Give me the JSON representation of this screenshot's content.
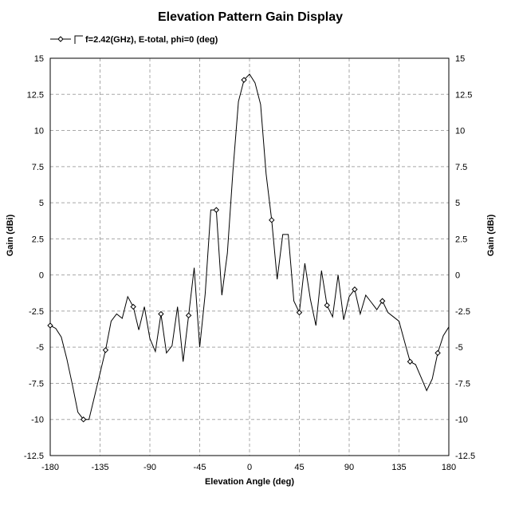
{
  "chart_data": {
    "type": "line",
    "title": "Elevation Pattern Gain Display",
    "xlabel": "Elevation Angle (deg)",
    "ylabel": "Gain (dBi)",
    "y2label": "Gain (dBi)",
    "xlim": [
      -180,
      180
    ],
    "ylim": [
      -12.5,
      15
    ],
    "x_ticks": [
      -180,
      -135,
      -90,
      -45,
      0,
      45,
      90,
      135,
      180
    ],
    "x_tick_labels": [
      "-180",
      "-135",
      "-90",
      "-45",
      "0",
      "45",
      "90",
      "135",
      "180"
    ],
    "y_ticks": [
      -12.5,
      -10,
      -7.5,
      -5,
      -2.5,
      0,
      2.5,
      5,
      7.5,
      10,
      12.5,
      15
    ],
    "y_tick_labels": [
      "-12.5",
      "-10",
      "-7.5",
      "-5",
      "-2.5",
      "0",
      "2.5",
      "5",
      "7.5",
      "10",
      "12.5",
      "15"
    ],
    "grid": true,
    "legend_position": "top-left",
    "series": [
      {
        "name": "f=2.42(GHz), E-total, phi=0 (deg)",
        "color": "#000000",
        "marker": "diamond",
        "x": [
          -180,
          -175,
          -170,
          -165,
          -160,
          -155,
          -150,
          -145,
          -140,
          -135,
          -130,
          -125,
          -120,
          -115,
          -110,
          -105,
          -100,
          -95,
          -90,
          -85,
          -80,
          -75,
          -70,
          -65,
          -60,
          -55,
          -50,
          -45,
          -40,
          -35,
          -30,
          -25,
          -20,
          -15,
          -10,
          -5,
          0,
          5,
          10,
          15,
          20,
          25,
          30,
          35,
          40,
          45,
          50,
          55,
          60,
          65,
          70,
          75,
          80,
          85,
          90,
          95,
          100,
          105,
          110,
          115,
          120,
          125,
          130,
          135,
          140,
          145,
          150,
          155,
          160,
          165,
          170,
          175,
          180
        ],
        "y": [
          -3.5,
          -3.7,
          -4.3,
          -5.8,
          -7.6,
          -9.5,
          -10.0,
          -10.0,
          -8.4,
          -6.8,
          -5.2,
          -3.2,
          -2.7,
          -3.0,
          -1.5,
          -2.2,
          -3.8,
          -2.2,
          -4.4,
          -5.3,
          -2.7,
          -5.4,
          -4.9,
          -2.2,
          -6.0,
          -2.8,
          0.5,
          -5.0,
          -1.3,
          4.5,
          4.5,
          -1.4,
          1.5,
          7.2,
          12.0,
          13.5,
          13.9,
          13.3,
          11.8,
          7.0,
          3.8,
          -0.3,
          2.8,
          2.8,
          -1.8,
          -2.6,
          0.8,
          -1.7,
          -3.5,
          0.3,
          -2.1,
          -2.9,
          0.0,
          -3.1,
          -1.5,
          -1.0,
          -2.7,
          -1.4,
          -1.9,
          -2.4,
          -1.8,
          -2.6,
          -2.9,
          -3.2,
          -4.6,
          -6.0,
          -6.2,
          -7.1,
          -8.0,
          -7.2,
          -5.4,
          -4.2,
          -3.6
        ],
        "marker_x": [
          -180,
          -150,
          -130,
          -105,
          -80,
          -55,
          -30,
          -5,
          20,
          45,
          70,
          95,
          120,
          145,
          170
        ]
      }
    ]
  }
}
